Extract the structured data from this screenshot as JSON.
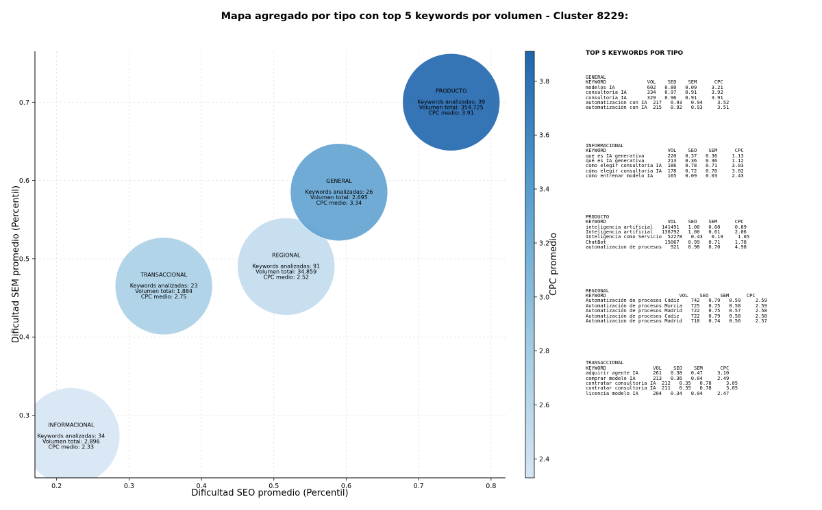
{
  "title": "Mapa agregado por tipo con top 5 keywords por volumen - Cluster 8229:",
  "chart_data": {
    "type": "scatter",
    "xlabel": "Dificultad SEO promedio (Percentil)",
    "ylabel": "Dificultad SEM promedio (Percentil)",
    "xlim": [
      0.17,
      0.82
    ],
    "ylim": [
      0.22,
      0.765
    ],
    "xticks": [
      "0.2",
      "0.3",
      "0.4",
      "0.5",
      "0.6",
      "0.7",
      "0.8"
    ],
    "yticks": [
      "0.3",
      "0.4",
      "0.5",
      "0.6",
      "0.7"
    ],
    "grid": true,
    "colorbar": {
      "label": "CPC promedio",
      "range": [
        2.33,
        3.91
      ],
      "ticks": [
        "2.4",
        "2.6",
        "2.8",
        "3.0",
        "3.2",
        "3.4",
        "3.6",
        "3.8"
      ],
      "colors": [
        "#d6e5f4",
        "#9dc9e1",
        "#5a9fd0",
        "#1f65ad"
      ]
    },
    "points": [
      {
        "name": "INFORMACIONAL",
        "x": 0.22,
        "y": 0.273,
        "keywords": "Keywords analizadas: 34",
        "volume": "Volumen total: 2.896",
        "cpc_text": "CPC medio: 2.33",
        "cpc": 2.33
      },
      {
        "name": "TRANSACCIONAL",
        "x": 0.348,
        "y": 0.465,
        "keywords": "Keywords analizadas: 23",
        "volume": "Volumen total: 1.884",
        "cpc_text": "CPC medio: 2.75",
        "cpc": 2.75
      },
      {
        "name": "REGIONAL",
        "x": 0.517,
        "y": 0.49,
        "keywords": "Keywords analizadas: 91",
        "volume": "Volumen total: 34.859",
        "cpc_text": "CPC medio: 2.52",
        "cpc": 2.52
      },
      {
        "name": "GENERAL",
        "x": 0.59,
        "y": 0.585,
        "keywords": "Keywords analizadas: 26",
        "volume": "Volumen total: 2.695",
        "cpc_text": "CPC medio: 3.34",
        "cpc": 3.34
      },
      {
        "name": "PRODUCTO",
        "x": 0.745,
        "y": 0.7,
        "keywords": "Keywords analizadas: 39",
        "volume": "Volumen total: 354.725",
        "cpc_text": "CPC medio: 3.91",
        "cpc": 3.91
      }
    ]
  },
  "panel": {
    "title": "TOP 5 KEYWORDS POR TIPO",
    "blocks": [
      {
        "name": "GENERAL",
        "header": "KEYWORD              VOL    SEO    SEM      CPC",
        "rows": [
          "modelos IA           602   0.80   0.09     3.21",
          "consultoria IA       334   0.97   0.91     3.92",
          "consultoría IA       329   0.96   0.91     3.91",
          "automatizacion con IA  217   0.93   0.94     3.52",
          "automatización con IA  215   0.92   0.93     3.51"
        ]
      },
      {
        "name": "INFORMACIONAL",
        "header": "KEYWORD                     VOL    SEO    SEM      CPC",
        "rows": [
          "que es IA generativa        220   0.37   0.36     1.13",
          "qué es IA generativa        213   0.36   0.36     1.12",
          "como elegir consultoría IA  186   0.78   0.71     3.03",
          "cómo elegir consultoría IA  178   0.72   0.70     3.02",
          "cómo entrenar modelo IA     165   0.09   0.03     2.43"
        ]
      },
      {
        "name": "PRODUCTO",
        "header": "KEYWORD                     VOL    SEO    SEM      CPC",
        "rows": [
          "inteligencia artificial   141491   1.00   0.60     0.89",
          "Inteligencia artificial   136792   1.00   0.61     2.06",
          "Inteligencia como Servicio  52278   0.43   0.19     1.65",
          "ChatBot                    15067   0.99   0.71     1.78",
          "automatizacion de procesos   921   0.98   0.70     4.98"
        ]
      },
      {
        "name": "REGIONAL",
        "header": "KEYWORD                         VOL    SEO    SEM      CPC",
        "rows": [
          "Automatización de procesos Cádiz    742   0.79   0.59     2.59",
          "Automatización de procesos Murcia   725   0.75   0.58     2.59",
          "Automatización de procesos Madrid   722   0.75   0.57     2.58",
          "Automatización de procesos Cadiz    722   0.79   0.58     2.58",
          "Automatizacion de procesos Madrid   718   0.74   0.56     2.57"
        ]
      },
      {
        "name": "TRANSACCIONAL",
        "header": "KEYWORD                VOL    SEO    SEM      CPC",
        "rows": [
          "adquirir agente IA     261   0.38   0.47     3.10",
          "comprar modelo IA      213   0.36   0.04     2.49",
          "contratar consultoria IA  212   0.35   0.78     3.05",
          "contratar consultoría IA  211   0.35   0.78     3.05",
          "licencia modelo IA     204   0.34   0.04     2.47"
        ]
      }
    ]
  }
}
